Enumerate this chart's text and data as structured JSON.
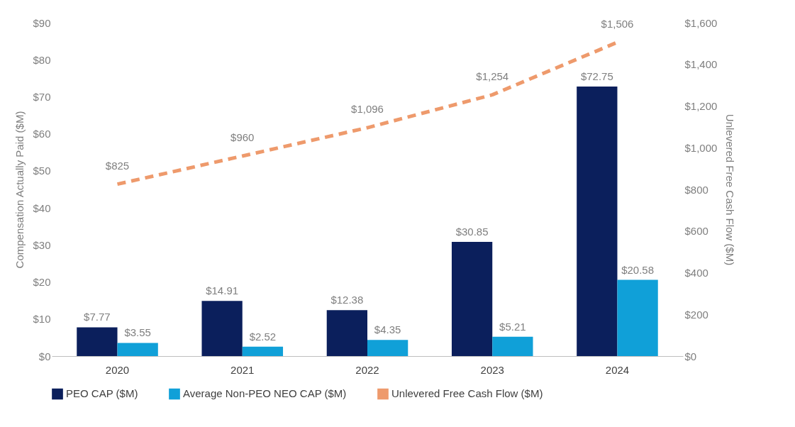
{
  "chart_data": {
    "type": "bar",
    "categories": [
      "2020",
      "2021",
      "2022",
      "2023",
      "2024"
    ],
    "ylabel": "Compensation Actually Paid ($M)",
    "y2label": "Unlevered Free Cash Flow ($M)",
    "ylim": [
      0,
      90
    ],
    "yticks": [
      {
        "value": 0,
        "label": "$0"
      },
      {
        "value": 10,
        "label": "$10"
      },
      {
        "value": 20,
        "label": "$20"
      },
      {
        "value": 30,
        "label": "$30"
      },
      {
        "value": 40,
        "label": "$40"
      },
      {
        "value": 50,
        "label": "$50"
      },
      {
        "value": 60,
        "label": "$60"
      },
      {
        "value": 70,
        "label": "$70"
      },
      {
        "value": 80,
        "label": "$80"
      },
      {
        "value": 90,
        "label": "$90"
      }
    ],
    "y2lim": [
      0,
      1600
    ],
    "y2ticks": [
      {
        "value": 0,
        "label": "$0"
      },
      {
        "value": 200,
        "label": "$200"
      },
      {
        "value": 400,
        "label": "$400"
      },
      {
        "value": 600,
        "label": "$600"
      },
      {
        "value": 800,
        "label": "$800"
      },
      {
        "value": 1000,
        "label": "$1,000"
      },
      {
        "value": 1200,
        "label": "$1,200"
      },
      {
        "value": 1400,
        "label": "$1,400"
      },
      {
        "value": 1600,
        "label": "$1,600"
      }
    ],
    "legend": "bottom",
    "series": [
      {
        "name": "PEO CAP ($M)",
        "color": "#0b1f5c",
        "values": [
          7.77,
          14.91,
          12.38,
          30.85,
          72.75
        ],
        "value_labels": [
          "$7.77",
          "$14.91",
          "$12.38",
          "$30.85",
          "$72.75"
        ]
      },
      {
        "name": "Average Non-PEO NEO CAP ($M)",
        "color": "#10a0d8",
        "values": [
          3.55,
          2.52,
          4.35,
          5.21,
          20.58
        ],
        "value_labels": [
          "$3.55",
          "$2.52",
          "$4.35",
          "$5.21",
          "$20.58"
        ]
      },
      {
        "name": "Unlevered Free Cash Flow ($M)",
        "type": "line",
        "axis": "y2",
        "line_style": "dashed",
        "color": "#ee9a6c",
        "values": [
          825,
          960,
          1096,
          1254,
          1506
        ],
        "value_labels": [
          "$825",
          "$960",
          "$1,096",
          "$1,254",
          "$1,506"
        ]
      }
    ]
  }
}
